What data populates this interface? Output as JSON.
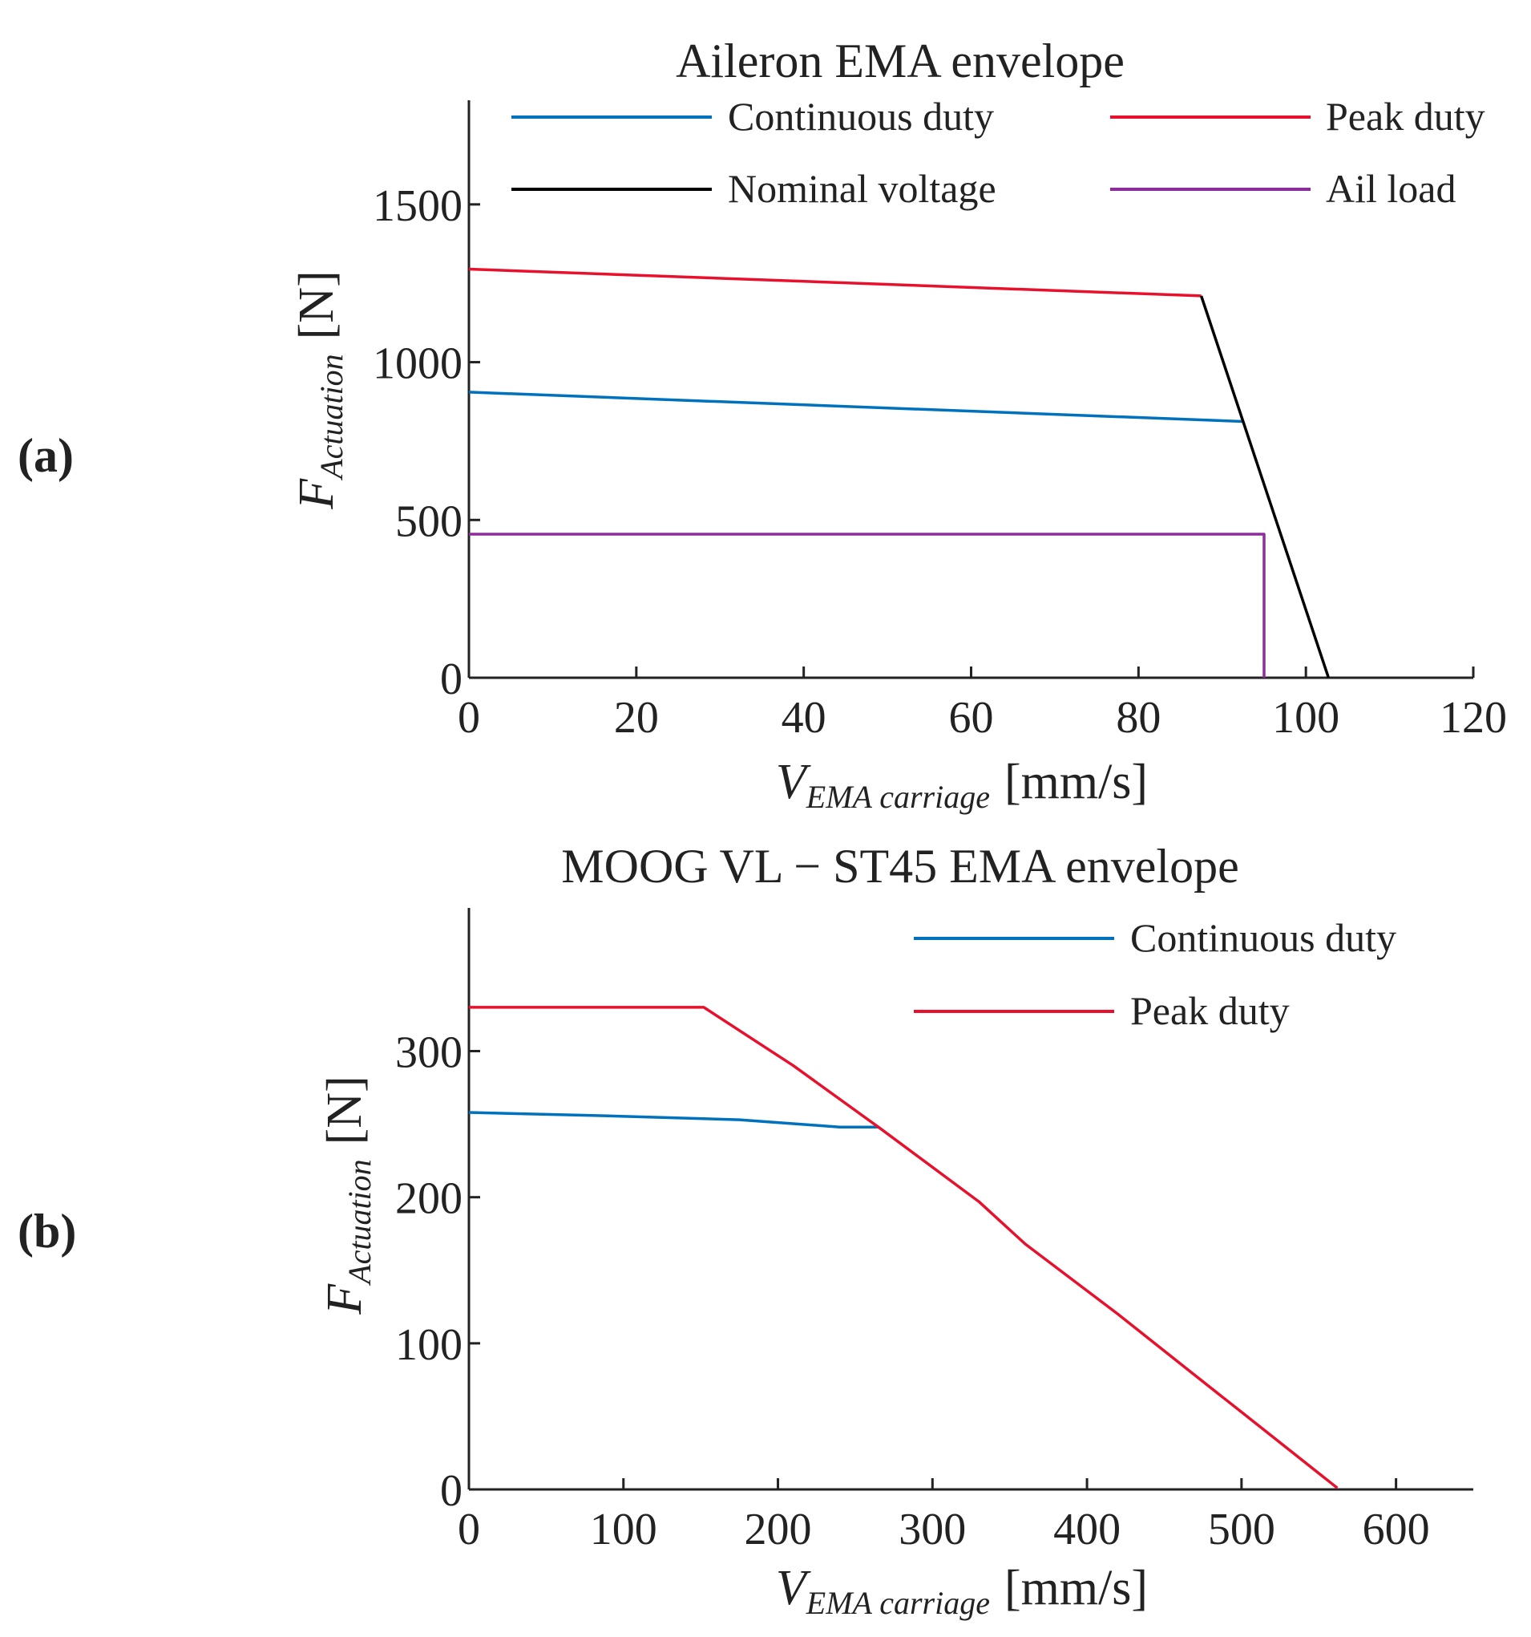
{
  "panels": {
    "a": {
      "label": "(a)"
    },
    "b": {
      "label": "(b)"
    }
  },
  "chart_data": [
    {
      "type": "line",
      "title": "Aileron EMA envelope",
      "xlabel": {
        "main": "V",
        "sub": "EMA carriage",
        "unit": "[mm/s]"
      },
      "ylabel": {
        "main": "F",
        "sub": "Actuation",
        "unit": "[N]"
      },
      "xlim": [
        0,
        120
      ],
      "ylim": [
        0,
        1830
      ],
      "xticks": [
        0,
        20,
        40,
        60,
        80,
        100,
        120
      ],
      "yticks": [
        0,
        500,
        1000,
        1500
      ],
      "legend_position": "top",
      "series": [
        {
          "name": "Continuous duty",
          "color": "#0072BD",
          "x": [
            0,
            92.5
          ],
          "y": [
            905,
            812
          ]
        },
        {
          "name": "Peak duty",
          "color": "#E8112D",
          "x": [
            0,
            87.5
          ],
          "y": [
            1295,
            1210
          ]
        },
        {
          "name": "Nominal voltage",
          "color": "#000000",
          "x": [
            87.5,
            102.7
          ],
          "y": [
            1210,
            0
          ]
        },
        {
          "name": "Ail load",
          "color": "#8E2C9C",
          "x": [
            0,
            95,
            95
          ],
          "y": [
            455,
            455,
            0
          ]
        }
      ]
    },
    {
      "type": "line",
      "title": "MOOG VL − ST45 EMA envelope",
      "xlabel": {
        "main": "V",
        "sub": "EMA carriage",
        "unit": "[mm/s]"
      },
      "ylabel": {
        "main": "F",
        "sub": "Actuation",
        "unit": "[N]"
      },
      "xlim": [
        0,
        650
      ],
      "ylim": [
        0,
        398
      ],
      "xticks": [
        0,
        100,
        200,
        300,
        400,
        500,
        600
      ],
      "yticks": [
        0,
        100,
        200,
        300
      ],
      "legend_position": "top-right",
      "series": [
        {
          "name": "Continuous duty",
          "color": "#0072BD",
          "x": [
            0,
            80,
            175,
            240,
            265
          ],
          "y": [
            258,
            256,
            253,
            248,
            248
          ]
        },
        {
          "name": "Peak duty",
          "color": "#E8112D",
          "x": [
            0,
            152,
            210,
            265,
            330,
            360,
            420,
            470,
            500,
            562
          ],
          "y": [
            330,
            330,
            290,
            248,
            197,
            168,
            120,
            78,
            53,
            1
          ]
        }
      ]
    }
  ]
}
